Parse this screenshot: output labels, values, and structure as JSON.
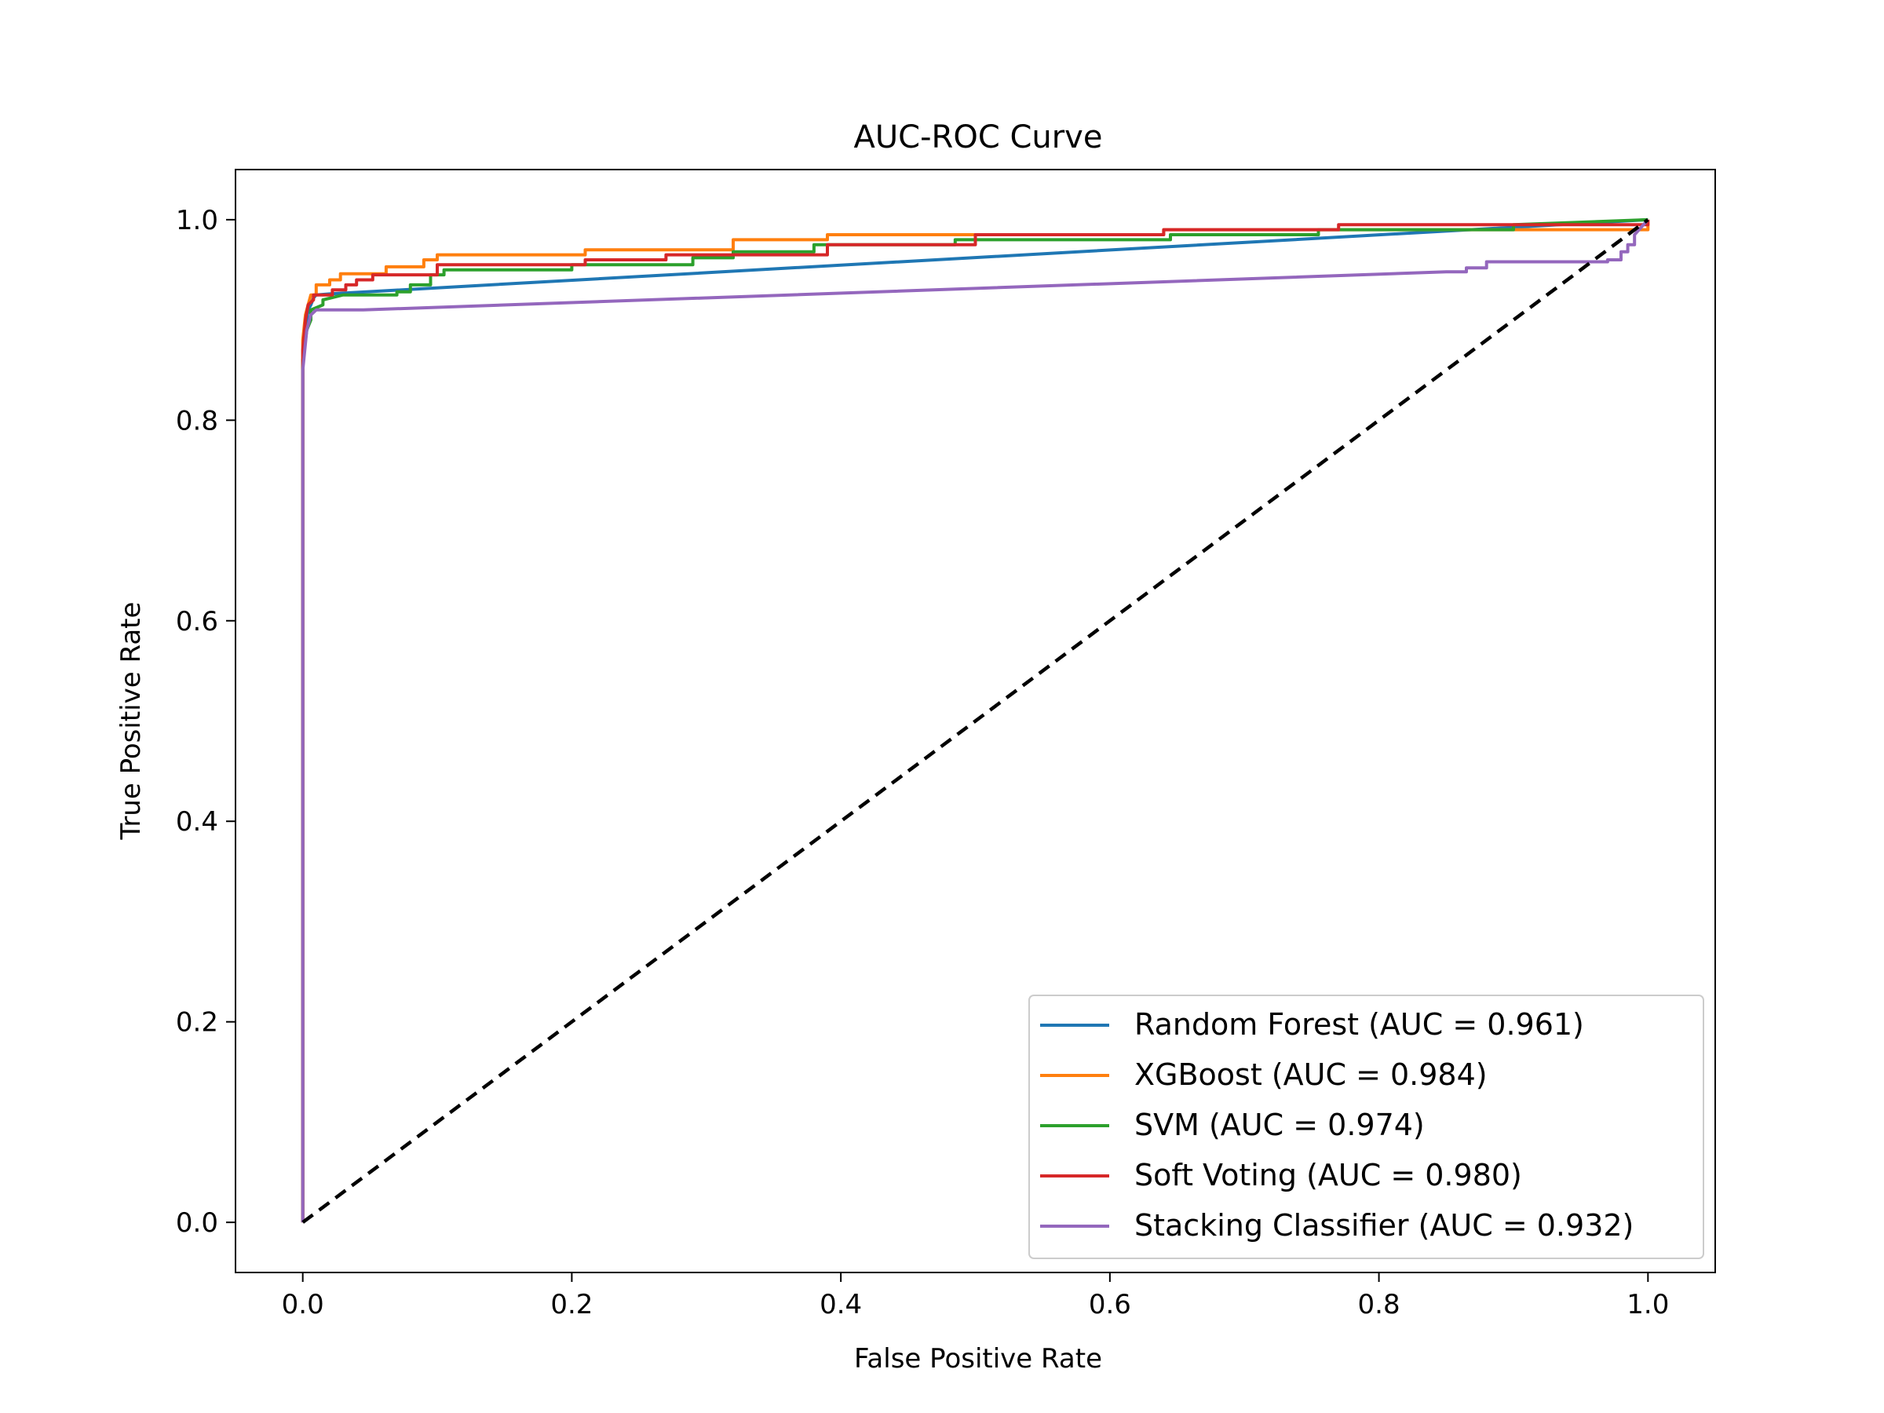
{
  "chart_data": {
    "type": "line",
    "title": "AUC-ROC Curve",
    "xlabel": "False Positive Rate",
    "ylabel": "True Positive Rate",
    "xlim": [
      -0.05,
      1.05
    ],
    "ylim": [
      -0.05,
      1.05
    ],
    "xticks": [
      0.0,
      0.2,
      0.4,
      0.6,
      0.8,
      1.0
    ],
    "yticks": [
      0.0,
      0.2,
      0.4,
      0.6,
      0.8,
      1.0
    ],
    "xtick_labels": [
      "0.0",
      "0.2",
      "0.4",
      "0.6",
      "0.8",
      "1.0"
    ],
    "ytick_labels": [
      "0.0",
      "0.2",
      "0.4",
      "0.6",
      "0.8",
      "1.0"
    ],
    "grid": false,
    "legend_position": "lower right",
    "series": [
      {
        "name": "Random Forest (AUC = 0.961)",
        "color": "#1f77b4",
        "points": [
          [
            0.0,
            0.0
          ],
          [
            0.0,
            0.86
          ],
          [
            0.002,
            0.89
          ],
          [
            0.004,
            0.91
          ],
          [
            0.006,
            0.915
          ],
          [
            0.008,
            0.922
          ],
          [
            0.01,
            0.925
          ],
          [
            0.02,
            0.926
          ],
          [
            1.0,
            1.0
          ]
        ]
      },
      {
        "name": "XGBoost (AUC = 0.984)",
        "color": "#ff7f0e",
        "points": [
          [
            0.0,
            0.0
          ],
          [
            0.0,
            0.88
          ],
          [
            0.002,
            0.905
          ],
          [
            0.004,
            0.915
          ],
          [
            0.006,
            0.925
          ],
          [
            0.01,
            0.925
          ],
          [
            0.01,
            0.935
          ],
          [
            0.02,
            0.935
          ],
          [
            0.02,
            0.94
          ],
          [
            0.028,
            0.94
          ],
          [
            0.028,
            0.946
          ],
          [
            0.062,
            0.946
          ],
          [
            0.062,
            0.953
          ],
          [
            0.09,
            0.953
          ],
          [
            0.09,
            0.96
          ],
          [
            0.1,
            0.96
          ],
          [
            0.1,
            0.965
          ],
          [
            0.21,
            0.965
          ],
          [
            0.21,
            0.97
          ],
          [
            0.32,
            0.97
          ],
          [
            0.32,
            0.98
          ],
          [
            0.39,
            0.98
          ],
          [
            0.39,
            0.985
          ],
          [
            0.64,
            0.985
          ],
          [
            0.64,
            0.99
          ],
          [
            1.0,
            0.99
          ],
          [
            1.0,
            1.0
          ]
        ]
      },
      {
        "name": "SVM (AUC = 0.974)",
        "color": "#2ca02c",
        "points": [
          [
            0.0,
            0.0
          ],
          [
            0.0,
            0.86
          ],
          [
            0.003,
            0.89
          ],
          [
            0.006,
            0.9
          ],
          [
            0.006,
            0.91
          ],
          [
            0.015,
            0.915
          ],
          [
            0.015,
            0.92
          ],
          [
            0.03,
            0.925
          ],
          [
            0.07,
            0.925
          ],
          [
            0.07,
            0.928
          ],
          [
            0.08,
            0.928
          ],
          [
            0.08,
            0.935
          ],
          [
            0.095,
            0.935
          ],
          [
            0.095,
            0.945
          ],
          [
            0.105,
            0.945
          ],
          [
            0.105,
            0.95
          ],
          [
            0.2,
            0.95
          ],
          [
            0.2,
            0.955
          ],
          [
            0.29,
            0.955
          ],
          [
            0.29,
            0.962
          ],
          [
            0.32,
            0.962
          ],
          [
            0.32,
            0.968
          ],
          [
            0.38,
            0.968
          ],
          [
            0.38,
            0.975
          ],
          [
            0.485,
            0.975
          ],
          [
            0.485,
            0.98
          ],
          [
            0.645,
            0.98
          ],
          [
            0.645,
            0.985
          ],
          [
            0.755,
            0.985
          ],
          [
            0.755,
            0.99
          ],
          [
            0.9,
            0.99
          ],
          [
            0.9,
            0.995
          ],
          [
            1.0,
            1.0
          ]
        ]
      },
      {
        "name": "Soft Voting (AUC = 0.980)",
        "color": "#d62728",
        "points": [
          [
            0.0,
            0.0
          ],
          [
            0.0,
            0.87
          ],
          [
            0.002,
            0.9
          ],
          [
            0.004,
            0.915
          ],
          [
            0.008,
            0.92
          ],
          [
            0.008,
            0.925
          ],
          [
            0.022,
            0.925
          ],
          [
            0.022,
            0.93
          ],
          [
            0.032,
            0.93
          ],
          [
            0.032,
            0.935
          ],
          [
            0.04,
            0.935
          ],
          [
            0.04,
            0.94
          ],
          [
            0.052,
            0.94
          ],
          [
            0.052,
            0.945
          ],
          [
            0.1,
            0.945
          ],
          [
            0.1,
            0.955
          ],
          [
            0.21,
            0.955
          ],
          [
            0.21,
            0.96
          ],
          [
            0.27,
            0.96
          ],
          [
            0.27,
            0.965
          ],
          [
            0.39,
            0.965
          ],
          [
            0.39,
            0.975
          ],
          [
            0.5,
            0.975
          ],
          [
            0.5,
            0.985
          ],
          [
            0.64,
            0.985
          ],
          [
            0.64,
            0.99
          ],
          [
            0.77,
            0.99
          ],
          [
            0.77,
            0.995
          ],
          [
            1.0,
            0.995
          ],
          [
            1.0,
            1.0
          ]
        ]
      },
      {
        "name": "Stacking Classifier (AUC = 0.932)",
        "color": "#9467bd",
        "points": [
          [
            0.0,
            0.0
          ],
          [
            0.0,
            0.85
          ],
          [
            0.003,
            0.89
          ],
          [
            0.006,
            0.905
          ],
          [
            0.01,
            0.91
          ],
          [
            0.045,
            0.91
          ],
          [
            0.85,
            0.948
          ],
          [
            0.865,
            0.948
          ],
          [
            0.865,
            0.952
          ],
          [
            0.88,
            0.952
          ],
          [
            0.88,
            0.958
          ],
          [
            0.97,
            0.958
          ],
          [
            0.97,
            0.96
          ],
          [
            0.98,
            0.96
          ],
          [
            0.98,
            0.968
          ],
          [
            0.985,
            0.968
          ],
          [
            0.985,
            0.975
          ],
          [
            0.99,
            0.975
          ],
          [
            0.99,
            0.985
          ],
          [
            1.0,
            1.0
          ]
        ]
      },
      {
        "name": "",
        "color": "#000000",
        "dashed": true,
        "points": [
          [
            0.0,
            0.0
          ],
          [
            1.0,
            1.0
          ]
        ]
      }
    ]
  }
}
